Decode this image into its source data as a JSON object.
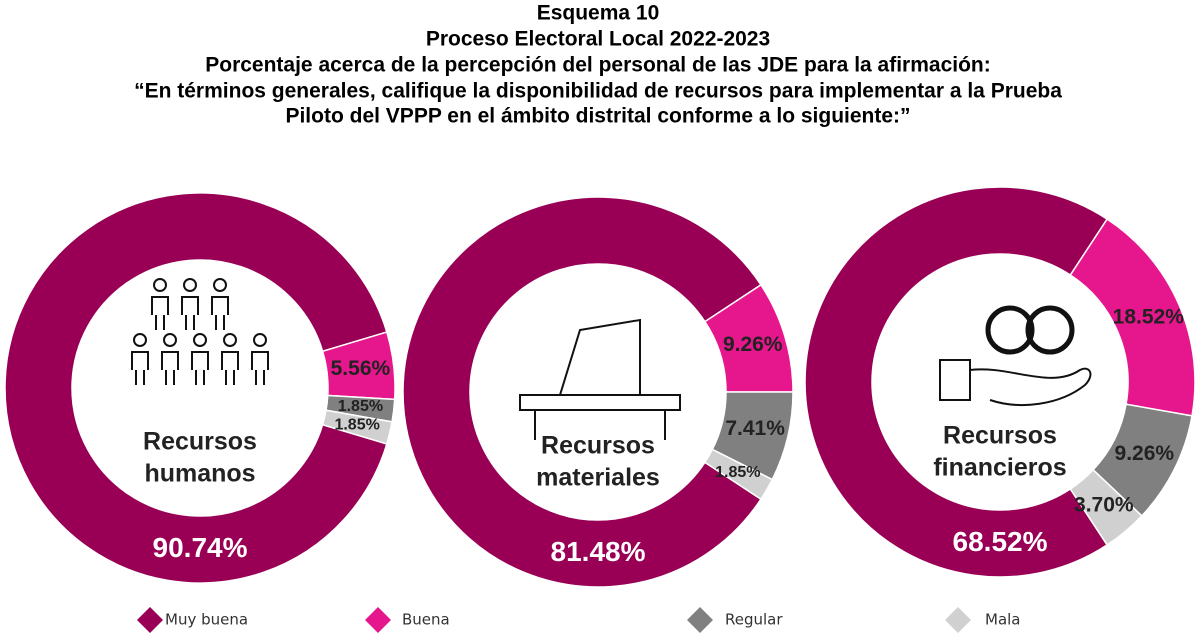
{
  "header": {
    "lines": [
      "Esquema 10",
      "Proceso Electoral Local 2022-2023",
      "Porcentaje acerca de la percepción del personal de las JDE para la afirmación:",
      "“En términos generales, califique la disponibilidad de recursos para implementar a la Prueba",
      "Piloto del VPPP en el ámbito distrital conforme a lo siguiente:”"
    ]
  },
  "chart_data": [
    {
      "type": "donut",
      "center_label": [
        "Recursos",
        "humanos"
      ],
      "categories": [
        "Muy buena",
        "Buena",
        "Regular",
        "Mala"
      ],
      "colors": [
        "#990055",
        "#e6168c",
        "#808080",
        "#d0d0d0"
      ],
      "values": [
        90.74,
        5.56,
        1.85,
        1.85
      ],
      "value_labels": [
        "90.74%",
        "5.56%",
        "1.85%",
        "1.85%"
      ]
    },
    {
      "type": "donut",
      "center_label": [
        "Recursos",
        "materiales"
      ],
      "categories": [
        "Muy buena",
        "Buena",
        "Regular",
        "Mala"
      ],
      "colors": [
        "#990055",
        "#e6168c",
        "#808080",
        "#d0d0d0"
      ],
      "values": [
        81.48,
        9.26,
        7.41,
        1.85
      ],
      "value_labels": [
        "81.48%",
        "9.26%",
        "7.41%",
        "1.85%"
      ]
    },
    {
      "type": "donut",
      "center_label": [
        "Recursos",
        "financieros"
      ],
      "categories": [
        "Muy buena",
        "Buena",
        "Regular",
        "Mala"
      ],
      "colors": [
        "#990055",
        "#e6168c",
        "#808080",
        "#d0d0d0"
      ],
      "values": [
        68.52,
        18.52,
        9.26,
        3.7
      ],
      "value_labels": [
        "68.52%",
        "18.52%",
        "9.26%",
        "3.70%"
      ]
    }
  ]
}
